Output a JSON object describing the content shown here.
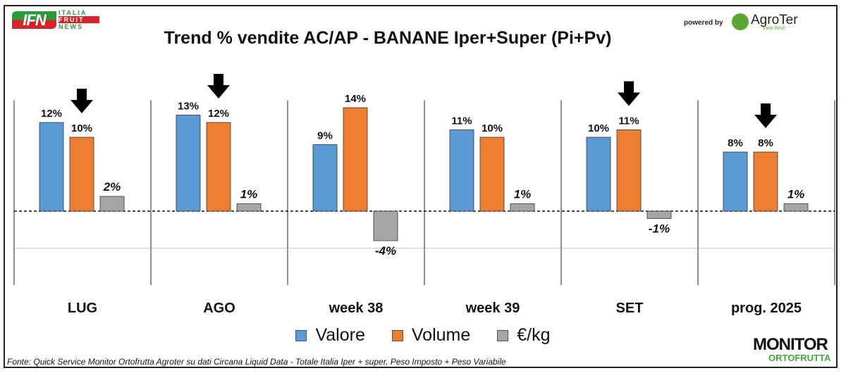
{
  "logos": {
    "ifn": {
      "mark": "IFN",
      "lines": [
        "ITALIA",
        "FRUIT",
        "NEWS"
      ]
    },
    "powered_by": "powered by",
    "agroter": "AgroTer",
    "agroter_tagline": "think fresh",
    "monitor": [
      "MONITOR",
      "ORTOFRUTTA"
    ]
  },
  "source": "Fonte: Quick Service Monitor Ortofrutta Agroter su dati Circana Liquid Data - Totale Italia Iper + super, Peso Imposto + Peso Variabile",
  "chart_data": {
    "type": "bar",
    "title": "Trend % vendite AC/AP - BANANE  Iper+Super (Pi+Pv)",
    "categories": [
      "LUG",
      "AGO",
      "week 38",
      "week 39",
      "SET",
      "prog. 2025"
    ],
    "series": [
      {
        "name": "Valore",
        "color": "#5b9bd5",
        "values": [
          12,
          13,
          9,
          11,
          10,
          8
        ],
        "labels": [
          "12%",
          "13%",
          "9%",
          "11%",
          "10%",
          "8%"
        ]
      },
      {
        "name": "Volume",
        "color": "#ed7d31",
        "values": [
          10,
          12,
          14,
          10,
          11,
          8
        ],
        "labels": [
          "10%",
          "12%",
          "14%",
          "10%",
          "11%",
          "8%"
        ]
      },
      {
        "name": "€/kg",
        "color": "#a5a5a5",
        "values": [
          2,
          1,
          -4,
          1,
          -1,
          1
        ],
        "labels": [
          "2%",
          "1%",
          "-4%",
          "1%",
          "-1%",
          "1%"
        ]
      }
    ],
    "arrows_over_volume": [
      "LUG",
      "AGO",
      "SET",
      "prog. 2025"
    ],
    "ylim": [
      -10,
      15
    ],
    "legend": "bottom",
    "grid": false
  }
}
